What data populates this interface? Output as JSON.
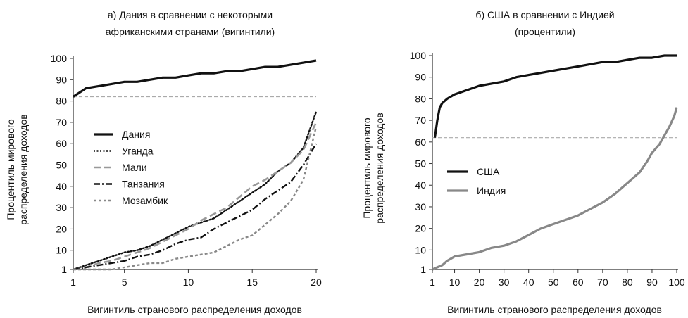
{
  "chart_data": [
    {
      "type": "line",
      "title": [
        "а) Дания в сравнении с некоторыми",
        "африканскими странами (вигинтили)"
      ],
      "xlabel": "Вигинтиль странового распределения доходов",
      "ylabel": [
        "Процентиль мирового",
        "распределения доходов"
      ],
      "xlim": [
        1,
        20
      ],
      "ylim": [
        1,
        100
      ],
      "xticks": [
        1,
        5,
        10,
        15,
        20
      ],
      "yticks": [
        1,
        10,
        20,
        30,
        40,
        50,
        60,
        70,
        80,
        90,
        100
      ],
      "grid": false,
      "legend_position": "left",
      "reference_line": 82,
      "x": [
        1,
        2,
        3,
        4,
        5,
        6,
        7,
        8,
        9,
        10,
        11,
        12,
        13,
        14,
        15,
        16,
        17,
        18,
        19,
        20
      ],
      "series": [
        {
          "name": "Дания",
          "style": "solid",
          "color": "#111111",
          "values": [
            82,
            86,
            87,
            88,
            89,
            89,
            90,
            91,
            91,
            92,
            93,
            93,
            94,
            94,
            95,
            96,
            96,
            97,
            98,
            99
          ]
        },
        {
          "name": "Уганда",
          "style": "dotted",
          "color": "#111111",
          "values": [
            1,
            3,
            5,
            7,
            9,
            10,
            12,
            15,
            18,
            21,
            23,
            25,
            29,
            33,
            37,
            41,
            47,
            51,
            58,
            75
          ]
        },
        {
          "name": "Мали",
          "style": "dashed",
          "color": "#999999",
          "values": [
            1,
            2,
            4,
            5,
            7,
            9,
            11,
            14,
            17,
            20,
            24,
            27,
            30,
            35,
            40,
            43,
            47,
            51,
            57,
            70
          ]
        },
        {
          "name": "Танзания",
          "style": "dashdot",
          "color": "#111111",
          "values": [
            1,
            2,
            3,
            4,
            5,
            7,
            8,
            10,
            13,
            15,
            16,
            20,
            23,
            26,
            29,
            34,
            38,
            42,
            50,
            60
          ]
        },
        {
          "name": "Мозамбик",
          "style": "shortdash",
          "color": "#888888",
          "values": [
            1,
            1,
            1,
            1,
            2,
            3,
            4,
            4,
            6,
            7,
            8,
            9,
            12,
            15,
            17,
            22,
            27,
            33,
            43,
            68
          ]
        }
      ]
    },
    {
      "type": "line",
      "title": [
        "б) США в сравнении с Индией",
        "(процентили)"
      ],
      "xlabel": "Вигинтиль странового распределения доходов",
      "ylabel": [
        "Процентиль мирового",
        "распределения доходов"
      ],
      "xlim": [
        1,
        100
      ],
      "ylim": [
        1,
        100
      ],
      "xticks": [
        1,
        10,
        20,
        30,
        40,
        50,
        60,
        70,
        80,
        90,
        100
      ],
      "yticks": [
        1,
        10,
        20,
        30,
        40,
        50,
        60,
        70,
        80,
        90,
        100
      ],
      "grid": false,
      "legend_position": "left",
      "reference_line": 62,
      "series": [
        {
          "name": "США",
          "style": "solid",
          "color": "#111111",
          "points": [
            [
              2,
              62
            ],
            [
              3,
              70
            ],
            [
              4,
              76
            ],
            [
              5,
              78
            ],
            [
              7,
              80
            ],
            [
              10,
              82
            ],
            [
              15,
              84
            ],
            [
              20,
              86
            ],
            [
              25,
              87
            ],
            [
              30,
              88
            ],
            [
              35,
              90
            ],
            [
              40,
              91
            ],
            [
              45,
              92
            ],
            [
              50,
              93
            ],
            [
              55,
              94
            ],
            [
              60,
              95
            ],
            [
              65,
              96
            ],
            [
              70,
              97
            ],
            [
              75,
              97
            ],
            [
              80,
              98
            ],
            [
              85,
              99
            ],
            [
              90,
              99
            ],
            [
              95,
              100
            ],
            [
              100,
              100
            ]
          ]
        },
        {
          "name": "Индия",
          "style": "solid",
          "color": "#888888",
          "points": [
            [
              1,
              1
            ],
            [
              3,
              2
            ],
            [
              5,
              3
            ],
            [
              7,
              5
            ],
            [
              10,
              7
            ],
            [
              15,
              8
            ],
            [
              20,
              9
            ],
            [
              25,
              11
            ],
            [
              30,
              12
            ],
            [
              35,
              14
            ],
            [
              40,
              17
            ],
            [
              45,
              20
            ],
            [
              50,
              22
            ],
            [
              55,
              24
            ],
            [
              60,
              26
            ],
            [
              65,
              29
            ],
            [
              70,
              32
            ],
            [
              75,
              36
            ],
            [
              80,
              41
            ],
            [
              85,
              46
            ],
            [
              88,
              51
            ],
            [
              90,
              55
            ],
            [
              93,
              59
            ],
            [
              95,
              63
            ],
            [
              97,
              67
            ],
            [
              99,
              72
            ],
            [
              100,
              76
            ]
          ]
        }
      ]
    }
  ]
}
